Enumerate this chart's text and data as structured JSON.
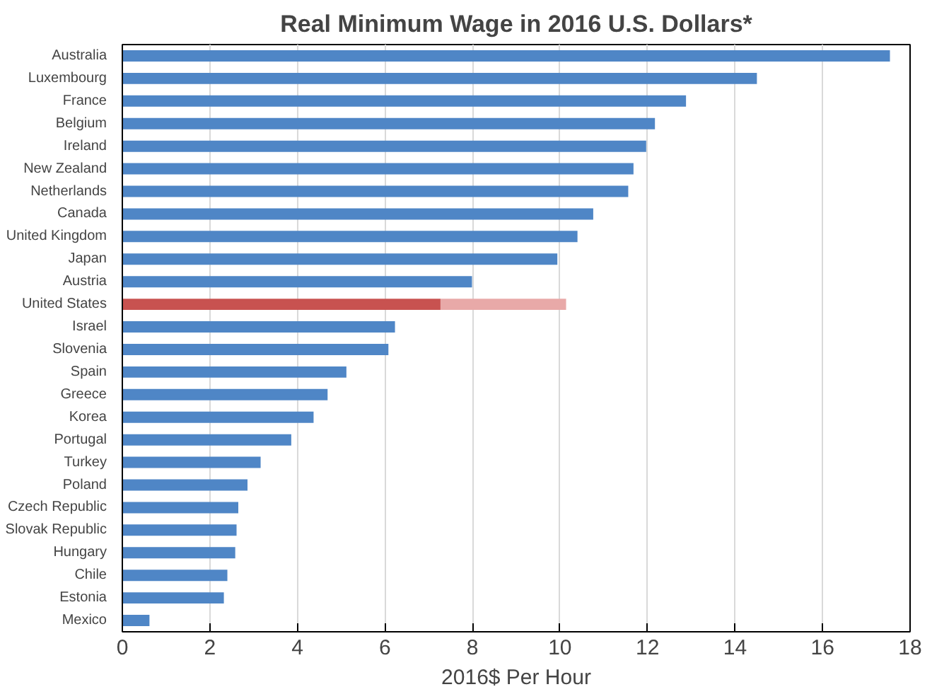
{
  "chart_data": {
    "type": "bar",
    "orientation": "horizontal",
    "stacked": true,
    "title": "Real Minimum Wage in 2016 U.S. Dollars*",
    "xlabel": "2016$ Per Hour",
    "categories": [
      "Australia",
      "Luxembourg",
      "France",
      "Belgium",
      "Ireland",
      "New Zealand",
      "Netherlands",
      "Canada",
      "United Kingdom",
      "Japan",
      "Austria",
      "United States",
      "Israel",
      "Slovenia",
      "Spain",
      "Greece",
      "Korea",
      "Portugal",
      "Turkey",
      "Poland",
      "Czech Republic",
      "Slovak Republic",
      "Hungary",
      "Chile",
      "Estonia",
      "Mexico"
    ],
    "series": [
      {
        "colors": [
          "#4f86c6",
          "#4f86c6",
          "#4f86c6",
          "#4f86c6",
          "#4f86c6",
          "#4f86c6",
          "#4f86c6",
          "#4f86c6",
          "#4f86c6",
          "#4f86c6",
          "#4f86c6",
          "#c85250",
          "#4f86c6",
          "#4f86c6",
          "#4f86c6",
          "#4f86c6",
          "#4f86c6",
          "#4f86c6",
          "#4f86c6",
          "#4f86c6",
          "#4f86c6",
          "#4f86c6",
          "#4f86c6",
          "#4f86c6",
          "#4f86c6",
          "#4f86c6"
        ],
        "values": [
          17.54,
          14.5,
          12.88,
          12.17,
          11.97,
          11.68,
          11.56,
          10.76,
          10.4,
          9.94,
          7.99,
          7.27,
          6.23,
          6.08,
          5.12,
          4.69,
          4.37,
          3.86,
          3.16,
          2.86,
          2.65,
          2.61,
          2.58,
          2.4,
          2.32,
          0.62
        ]
      },
      {
        "color": "#e8a9a8",
        "values": [
          null,
          null,
          null,
          null,
          null,
          null,
          null,
          null,
          null,
          null,
          null,
          2.87,
          null,
          null,
          null,
          null,
          null,
          null,
          null,
          null,
          null,
          null,
          null,
          null,
          null,
          null
        ]
      }
    ],
    "xlim": [
      0,
      18
    ],
    "xticks": [
      0,
      2,
      4,
      6,
      8,
      10,
      12,
      14,
      16,
      18
    ],
    "grid": "x"
  }
}
